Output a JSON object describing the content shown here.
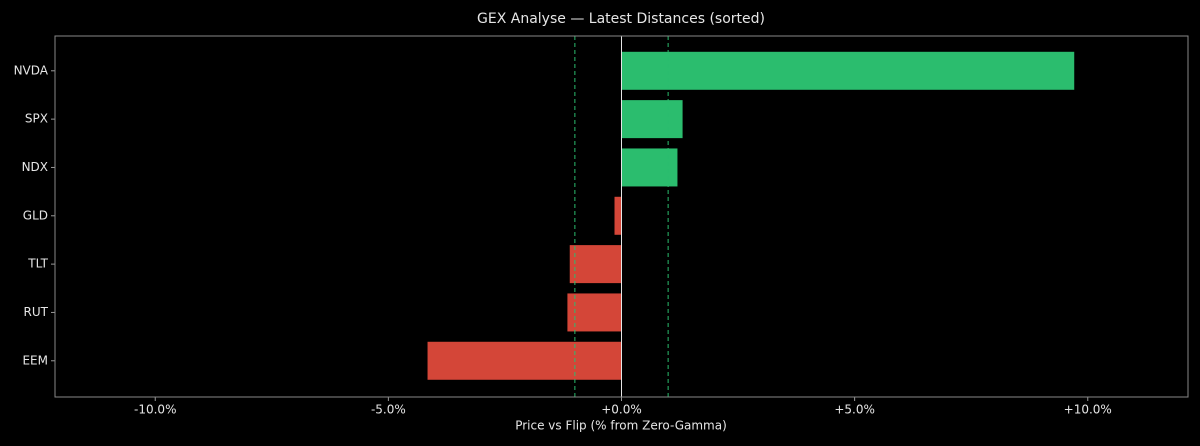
{
  "chart_data": {
    "type": "barh",
    "title": "GEX Analyse — Latest Distances (sorted)",
    "x_label": "Price vs Flip (% from Zero-Gamma)",
    "categories": [
      "NVDA",
      "SPX",
      "NDX",
      "GLD",
      "TLT",
      "RUT",
      "EEM"
    ],
    "values": [
      9.71,
      1.31,
      1.2,
      -0.15,
      -1.11,
      -1.16,
      -4.16
    ],
    "positive_color": "#2bbd6e",
    "negative_color": "#d44638",
    "reference_lines": [
      -1,
      1
    ],
    "reference_color": "#2bbd6e",
    "xlim": [
      -12.15,
      12.15
    ],
    "xticks": [
      {
        "value": -10,
        "label": "-10.0%"
      },
      {
        "value": -5,
        "label": "-5.0%"
      },
      {
        "value": 0,
        "label": "+0.0%"
      },
      {
        "value": 5,
        "label": "+5.0%"
      },
      {
        "value": 10,
        "label": "+10.0%"
      }
    ]
  }
}
